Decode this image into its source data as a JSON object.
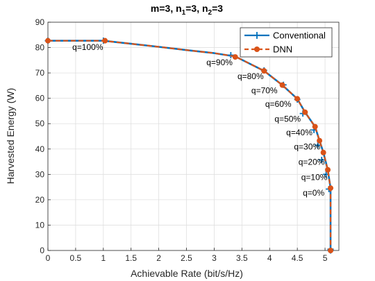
{
  "chart_data": {
    "type": "line",
    "title_parts": [
      "m=3, n",
      "1",
      "=3, n",
      "2",
      "=3"
    ],
    "xlabel": "Achievable Rate (bit/s/Hz)",
    "ylabel": "Harvested Energy (W)",
    "xlim": [
      0,
      5.25
    ],
    "ylim": [
      0,
      90
    ],
    "xticks": [
      0,
      0.5,
      1,
      1.5,
      2,
      2.5,
      3,
      3.5,
      4,
      4.5,
      5
    ],
    "xtick_labels": [
      "0",
      "0.5",
      "1",
      "1.5",
      "2",
      "2.5",
      "3",
      "3.5",
      "4",
      "4.5",
      "5"
    ],
    "yticks": [
      0,
      10,
      20,
      30,
      40,
      50,
      60,
      70,
      80,
      90
    ],
    "ytick_labels": [
      "0",
      "10",
      "20",
      "30",
      "40",
      "50",
      "60",
      "70",
      "80",
      "90"
    ],
    "grid": true,
    "legend_position": "top-right",
    "series": [
      {
        "name": "Conventional",
        "color": "#0072BD",
        "line": "solid",
        "marker": "plus",
        "x": [
          0,
          1.0,
          3.3,
          3.9,
          4.25,
          4.5,
          4.6,
          4.8,
          4.87,
          4.94,
          5.02,
          5.07,
          5.1,
          5.1
        ],
        "y": [
          82.7,
          82.7,
          77.0,
          71.0,
          65.3,
          59.5,
          54.0,
          47.5,
          41.5,
          35.7,
          30.0,
          24.2,
          0.5,
          0
        ]
      },
      {
        "name": "DNN",
        "color": "#D95319",
        "line": "dashed",
        "marker": "circle",
        "x": [
          0,
          1.03,
          3.38,
          3.9,
          4.23,
          4.5,
          4.64,
          4.82,
          4.9,
          4.97,
          5.05,
          5.1,
          5.1
        ],
        "y": [
          82.7,
          82.7,
          76.3,
          70.8,
          65.2,
          59.8,
          54.5,
          48.8,
          43.3,
          38.6,
          31.8,
          24.6,
          0
        ]
      }
    ],
    "curve": {
      "x": [
        0,
        1.0,
        1.5,
        2.0,
        2.5,
        3.0,
        3.38,
        3.9,
        4.23,
        4.5,
        4.64,
        4.82,
        4.9,
        4.97,
        5.05,
        5.1,
        5.1
      ],
      "y": [
        82.7,
        82.7,
        81.5,
        80.3,
        79.0,
        77.8,
        76.5,
        70.8,
        65.2,
        59.8,
        54.5,
        48.8,
        43.3,
        38.6,
        31.8,
        24.6,
        0
      ]
    },
    "annotations": [
      {
        "text": "q=100%",
        "x": 0.44,
        "y": 79.0
      },
      {
        "text": "q=90%",
        "x": 2.86,
        "y": 73.0
      },
      {
        "text": "q=80%",
        "x": 3.42,
        "y": 67.6
      },
      {
        "text": "q=70%",
        "x": 3.67,
        "y": 62.0
      },
      {
        "text": "q=60%",
        "x": 3.92,
        "y": 56.6
      },
      {
        "text": "q=50%",
        "x": 4.09,
        "y": 50.8
      },
      {
        "text": "q=40%",
        "x": 4.3,
        "y": 45.4
      },
      {
        "text": "q=30%",
        "x": 4.44,
        "y": 39.8
      },
      {
        "text": "q=20%",
        "x": 4.52,
        "y": 33.8
      },
      {
        "text": "q=10%",
        "x": 4.57,
        "y": 27.8
      },
      {
        "text": "q=0%",
        "x": 4.6,
        "y": 21.6
      }
    ]
  }
}
